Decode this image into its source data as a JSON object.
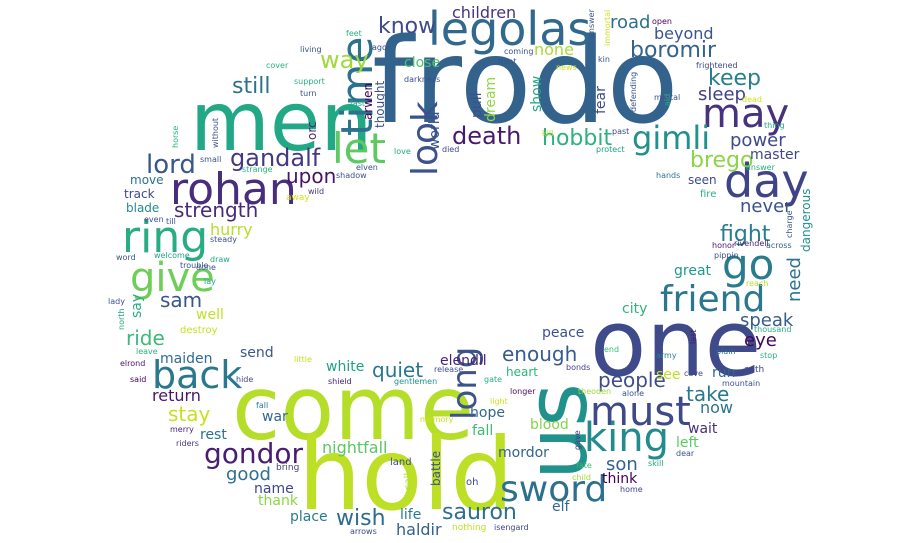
{
  "words": [
    {
      "text": "frodo",
      "color": "#33638d"
    },
    {
      "text": "men",
      "color": "#22a884"
    },
    {
      "text": "come",
      "color": "#b5de2b"
    },
    {
      "text": "hold",
      "color": "#bddf26"
    },
    {
      "text": "one",
      "color": "#3e4a89"
    },
    {
      "text": "us",
      "color": "#21918c"
    },
    {
      "text": "legolas",
      "color": "#31688e"
    },
    {
      "text": "time",
      "color": "#2c728e"
    },
    {
      "text": "let",
      "color": "#5ec962"
    },
    {
      "text": "look",
      "color": "#3b528b"
    },
    {
      "text": "day",
      "color": "#404387"
    },
    {
      "text": "may",
      "color": "#46327e"
    },
    {
      "text": "rohan",
      "color": "#472d7b"
    },
    {
      "text": "ring",
      "color": "#27ad81"
    },
    {
      "text": "give",
      "color": "#6ece58"
    },
    {
      "text": "back",
      "color": "#2a788e"
    },
    {
      "text": "go",
      "color": "#287c8e"
    },
    {
      "text": "friend",
      "color": "#2a788e"
    },
    {
      "text": "must",
      "color": "#3e4989"
    },
    {
      "text": "king",
      "color": "#238a8d"
    },
    {
      "text": "sword",
      "color": "#2d708e"
    },
    {
      "text": "long",
      "color": "#3b528b"
    },
    {
      "text": "gimli",
      "color": "#21918c"
    },
    {
      "text": "gandalf",
      "color": "#443983"
    },
    {
      "text": "lord",
      "color": "#38588c"
    },
    {
      "text": "gondor",
      "color": "#481f70"
    },
    {
      "text": "death",
      "color": "#481a6c"
    },
    {
      "text": "hobbit",
      "color": "#2db27d"
    },
    {
      "text": "boromir",
      "color": "#33638d"
    },
    {
      "text": "keep",
      "color": "#277f8e"
    },
    {
      "text": "sleep",
      "color": "#424086"
    },
    {
      "text": "know",
      "color": "#3e4989"
    },
    {
      "text": "way",
      "color": "#a0da39"
    },
    {
      "text": "still",
      "color": "#2c728e"
    },
    {
      "text": "children",
      "color": "#46337f"
    },
    {
      "text": "beyond",
      "color": "#3a548c"
    },
    {
      "text": "road",
      "color": "#2d708e"
    },
    {
      "text": "none",
      "color": "#a8db34"
    },
    {
      "text": "upon",
      "color": "#471365"
    },
    {
      "text": "strength",
      "color": "#472a7a"
    },
    {
      "text": "fight",
      "color": "#287d8e"
    },
    {
      "text": "brego",
      "color": "#8bd646"
    },
    {
      "text": "power",
      "color": "#3e4a89"
    },
    {
      "text": "master",
      "color": "#3f4788"
    },
    {
      "text": "never",
      "color": "#3b518b"
    },
    {
      "text": "need",
      "color": "#2d718e"
    },
    {
      "text": "speak",
      "color": "#365c8d"
    },
    {
      "text": "eye",
      "color": "#450559"
    },
    {
      "text": "hurry",
      "color": "#b8de29"
    },
    {
      "text": "sam",
      "color": "#3a548c"
    },
    {
      "text": "ride",
      "color": "#3aba76"
    },
    {
      "text": "well",
      "color": "#c2df23"
    },
    {
      "text": "stay",
      "color": "#c8e020"
    },
    {
      "text": "good",
      "color": "#2e6f8e"
    },
    {
      "text": "return",
      "color": "#481769"
    },
    {
      "text": "maiden",
      "color": "#2f6c8e"
    },
    {
      "text": "quiet",
      "color": "#2a768e"
    },
    {
      "text": "enough",
      "color": "#375b8d"
    },
    {
      "text": "people",
      "color": "#3d4e8a"
    },
    {
      "text": "take",
      "color": "#29798e"
    },
    {
      "text": "now",
      "color": "#2c738e"
    },
    {
      "text": "wait",
      "color": "#472f7d"
    },
    {
      "text": "son",
      "color": "#33638d"
    },
    {
      "text": "think",
      "color": "#440154"
    },
    {
      "text": "sauron",
      "color": "#2e6e8e"
    },
    {
      "text": "wish",
      "color": "#2f6b8e"
    },
    {
      "text": "haldir",
      "color": "#355f8d"
    },
    {
      "text": "elf",
      "color": "#31688e"
    },
    {
      "text": "mordor",
      "color": "#33638d"
    },
    {
      "text": "hope",
      "color": "#31688e"
    },
    {
      "text": "fall",
      "color": "#3dbc74"
    },
    {
      "text": "blood",
      "color": "#84d44b"
    },
    {
      "text": "nightfall",
      "color": "#58c765"
    },
    {
      "text": "elendil",
      "color": "#482173"
    },
    {
      "text": "white",
      "color": "#1fa187"
    },
    {
      "text": "send",
      "color": "#38588c"
    },
    {
      "text": "name",
      "color": "#3f4788"
    },
    {
      "text": "thank",
      "color": "#8bd646"
    },
    {
      "text": "place",
      "color": "#297b8e"
    },
    {
      "text": "life",
      "color": "#287c8e"
    },
    {
      "text": "war",
      "color": "#32658e"
    },
    {
      "text": "rest",
      "color": "#2c718e"
    },
    {
      "text": "peace",
      "color": "#3b528b"
    },
    {
      "text": "city",
      "color": "#2eb37c"
    },
    {
      "text": "great",
      "color": "#1e9b8a"
    },
    {
      "text": "run",
      "color": "#32648e"
    },
    {
      "text": "see",
      "color": "#c2df23"
    },
    {
      "text": "left",
      "color": "#5ec962"
    },
    {
      "text": "move",
      "color": "#2d708e"
    },
    {
      "text": "track",
      "color": "#3e4989"
    },
    {
      "text": "blade",
      "color": "#228c8d"
    },
    {
      "text": "seen",
      "color": "#3e4a89"
    },
    {
      "text": "dangerous",
      "color": "#21908d"
    },
    {
      "text": "say",
      "color": "#29af7f"
    },
    {
      "text": "pull",
      "color": "#3c4f8a"
    },
    {
      "text": "dream",
      "color": "#93d741"
    },
    {
      "text": "show",
      "color": "#20a386"
    },
    {
      "text": "fear",
      "color": "#3e4a89"
    },
    {
      "text": "world",
      "color": "#3b528b"
    },
    {
      "text": "close",
      "color": "#4ac16d"
    },
    {
      "text": "arwen",
      "color": "#440154"
    },
    {
      "text": "thought",
      "color": "#3b528b"
    },
    {
      "text": "orc",
      "color": "#482576"
    },
    {
      "text": "battle",
      "color": "#3b528b"
    },
    {
      "text": "call",
      "color": "#b5de2b"
    },
    {
      "text": "oh",
      "color": "#3e4989"
    },
    {
      "text": "land",
      "color": "#3d4e8a"
    },
    {
      "text": "bring",
      "color": "#404588"
    },
    {
      "text": "nothing",
      "color": "#bddf26"
    },
    {
      "text": "isengard",
      "color": "#404387"
    },
    {
      "text": "arrows",
      "color": "#3f4788"
    },
    {
      "text": "riders",
      "color": "#453781"
    },
    {
      "text": "merry",
      "color": "#482878"
    },
    {
      "text": "fall",
      "color": "#2a788e"
    },
    {
      "text": "hide",
      "color": "#3e4989"
    },
    {
      "text": "shield",
      "color": "#482576"
    },
    {
      "text": "gentlemen",
      "color": "#21918c"
    },
    {
      "text": "said",
      "color": "#440154"
    },
    {
      "text": "elrond",
      "color": "#481769"
    },
    {
      "text": "leave",
      "color": "#2ab07f"
    },
    {
      "text": "little",
      "color": "#c8e020"
    },
    {
      "text": "heart",
      "color": "#2eb37c"
    },
    {
      "text": "longer",
      "color": "#471063"
    },
    {
      "text": "release",
      "color": "#3c508b"
    },
    {
      "text": "gate",
      "color": "#29af7f"
    },
    {
      "text": "light",
      "color": "#d0e11c"
    },
    {
      "text": "bonds",
      "color": "#424086"
    },
    {
      "text": "theoden",
      "color": "#9fda3a"
    },
    {
      "text": "alone",
      "color": "#3b528b"
    },
    {
      "text": "fate",
      "color": "#3aba76"
    },
    {
      "text": "child",
      "color": "#a5db36"
    },
    {
      "text": "gave",
      "color": "#46337f"
    },
    {
      "text": "skill",
      "color": "#20a486"
    },
    {
      "text": "home",
      "color": "#3f4788"
    },
    {
      "text": "dear",
      "color": "#3b528b"
    },
    {
      "text": "cave",
      "color": "#3e4989"
    },
    {
      "text": "army",
      "color": "#27808e"
    },
    {
      "text": "last",
      "color": "#481a6c"
    },
    {
      "text": "plain",
      "color": "#2e6f8e"
    },
    {
      "text": "oath",
      "color": "#3f4788"
    },
    {
      "text": "stop",
      "color": "#2ab07f"
    },
    {
      "text": "mountain",
      "color": "#3a548c"
    },
    {
      "text": "end",
      "color": "#3aba76"
    },
    {
      "text": "thousand",
      "color": "#27ad81"
    },
    {
      "text": "reach",
      "color": "#b8de29"
    },
    {
      "text": "pippin",
      "color": "#3b528b"
    },
    {
      "text": "honor",
      "color": "#481a6c"
    },
    {
      "text": "across",
      "color": "#33638d"
    },
    {
      "text": "charge",
      "color": "#3b528b"
    },
    {
      "text": "rivendell",
      "color": "#481b6d"
    },
    {
      "text": "fire",
      "color": "#2ab07f"
    },
    {
      "text": "away",
      "color": "#d8e219"
    },
    {
      "text": "wild",
      "color": "#453781"
    },
    {
      "text": "hands",
      "color": "#2a788e"
    },
    {
      "text": "answer",
      "color": "#2ab07f"
    },
    {
      "text": "thing",
      "color": "#22a884"
    },
    {
      "text": "dead",
      "color": "#d0e11c"
    },
    {
      "text": "past",
      "color": "#3e4989"
    },
    {
      "text": "protect",
      "color": "#1fa187"
    },
    {
      "text": "defending",
      "color": "#3b528b"
    },
    {
      "text": "mortal",
      "color": "#3b528b"
    },
    {
      "text": "aid",
      "color": "#2ab07f"
    },
    {
      "text": "frightened",
      "color": "#3e4a89"
    },
    {
      "text": "kin",
      "color": "#3b528b"
    },
    {
      "text": "open",
      "color": "#440154"
    },
    {
      "text": "immortal",
      "color": "#d0e11c"
    },
    {
      "text": "answer",
      "color": "#3b528b"
    },
    {
      "text": "news",
      "color": "#c8e020"
    },
    {
      "text": "kill",
      "color": "#b5de2b"
    },
    {
      "text": "coming",
      "color": "#3b528b"
    },
    {
      "text": "hunt",
      "color": "#3b528b"
    },
    {
      "text": "ago",
      "color": "#3e4989"
    },
    {
      "text": "feet",
      "color": "#2ab07f"
    },
    {
      "text": "living",
      "color": "#3b528b"
    },
    {
      "text": "cover",
      "color": "#2ab07f"
    },
    {
      "text": "support",
      "color": "#2ab07f"
    },
    {
      "text": "turn",
      "color": "#3b528b"
    },
    {
      "text": "without",
      "color": "#3b528b"
    },
    {
      "text": "horse",
      "color": "#2ab07f"
    },
    {
      "text": "small",
      "color": "#3b528b"
    },
    {
      "text": "strange",
      "color": "#2ab07f"
    },
    {
      "text": "shadow",
      "color": "#3b528b"
    },
    {
      "text": "elven",
      "color": "#3b528b"
    },
    {
      "text": "died",
      "color": "#3e4989"
    },
    {
      "text": "love",
      "color": "#22a884"
    },
    {
      "text": "fast",
      "color": "#22a884"
    },
    {
      "text": "darkness",
      "color": "#3b528b"
    },
    {
      "text": "even",
      "color": "#3b528b"
    },
    {
      "text": "till",
      "color": "#3b528b"
    },
    {
      "text": "steady",
      "color": "#3b528b"
    },
    {
      "text": "word",
      "color": "#3b528b"
    },
    {
      "text": "welcome",
      "color": "#22a884"
    },
    {
      "text": "trouble",
      "color": "#3b528b"
    },
    {
      "text": "draw",
      "color": "#22a884"
    },
    {
      "text": "done",
      "color": "#3b528b"
    },
    {
      "text": "lay",
      "color": "#22a884"
    },
    {
      "text": "lady",
      "color": "#3b528b"
    },
    {
      "text": "north",
      "color": "#22a884"
    },
    {
      "text": "destroy",
      "color": "#c8e020"
    },
    {
      "text": "memory",
      "color": "#d0e11c"
    }
  ]
}
